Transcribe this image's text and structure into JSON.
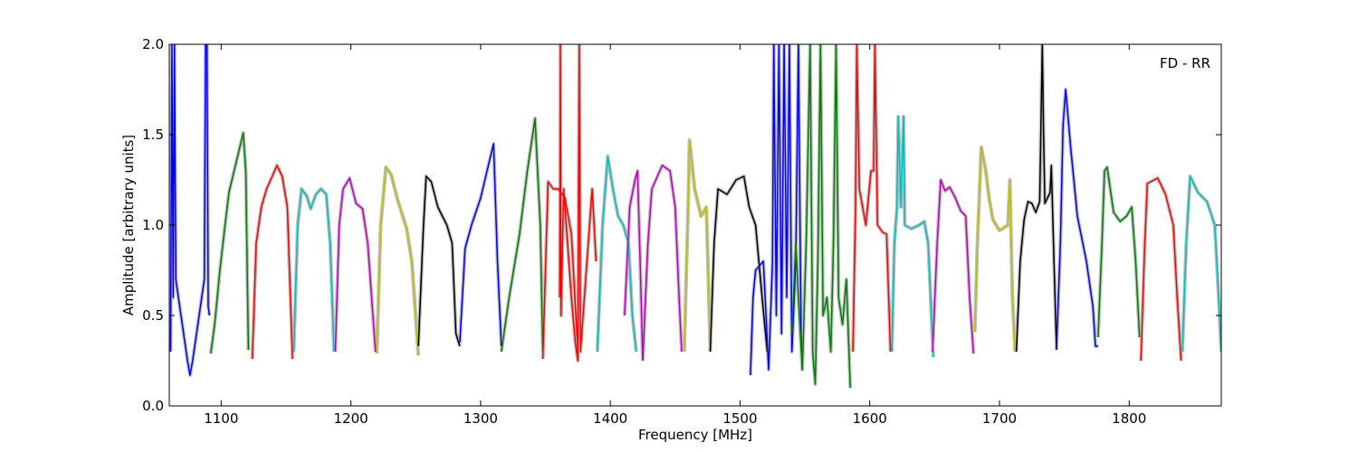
{
  "chart_data": {
    "type": "line",
    "title": "",
    "annotation": "FD - RR",
    "xlabel": "Frequency [MHz]",
    "ylabel": "Amplitude [arbitrary units]",
    "xlim": [
      1060,
      1871
    ],
    "ylim": [
      0,
      2
    ],
    "xticks": [
      1100,
      1200,
      1300,
      1400,
      1500,
      1600,
      1700,
      1800
    ],
    "yticks": [
      0.0,
      0.5,
      1.0,
      1.5,
      2.0
    ],
    "xtick_labels": [
      "1100",
      "1200",
      "1300",
      "1400",
      "1500",
      "1600",
      "1700",
      "1800"
    ],
    "ytick_labels": [
      "0.0",
      "0.5",
      "1.0",
      "1.5",
      "2.0"
    ],
    "grid": false,
    "envelope_color": "#bfbfbf",
    "series": [
      {
        "color": "#0000ff",
        "points": [
          [
            1061,
            0.3
          ],
          [
            1062,
            2.0
          ],
          [
            1063,
            0.6
          ],
          [
            1064,
            2.0
          ],
          [
            1065,
            0.7
          ],
          [
            1068,
            0.55
          ],
          [
            1071,
            0.4
          ],
          [
            1074,
            0.25
          ],
          [
            1076,
            0.17
          ],
          [
            1078,
            0.25
          ],
          [
            1081,
            0.4
          ],
          [
            1084,
            0.55
          ],
          [
            1087,
            0.7
          ],
          [
            1088,
            2.0
          ],
          [
            1089,
            2.0
          ],
          [
            1090,
            0.55
          ],
          [
            1091,
            0.5
          ]
        ]
      },
      {
        "color": "#008000",
        "points": [
          [
            1092,
            0.29
          ],
          [
            1095,
            0.45
          ],
          [
            1099,
            0.75
          ],
          [
            1103,
            1.0
          ],
          [
            1106,
            1.18
          ],
          [
            1110,
            1.3
          ],
          [
            1114,
            1.42
          ],
          [
            1117,
            1.51
          ],
          [
            1119,
            1.3
          ],
          [
            1121,
            0.31
          ]
        ]
      },
      {
        "color": "#ff0000",
        "points": [
          [
            1124,
            0.26
          ],
          [
            1127,
            0.9
          ],
          [
            1131,
            1.1
          ],
          [
            1135,
            1.2
          ],
          [
            1140,
            1.28
          ],
          [
            1143,
            1.33
          ],
          [
            1147,
            1.27
          ],
          [
            1151,
            1.1
          ],
          [
            1155,
            0.26
          ]
        ]
      },
      {
        "color": "#00bfbf",
        "points": [
          [
            1156,
            0.3
          ],
          [
            1159,
            1.0
          ],
          [
            1162,
            1.2
          ],
          [
            1166,
            1.16
          ],
          [
            1169,
            1.09
          ],
          [
            1173,
            1.17
          ],
          [
            1177,
            1.2
          ],
          [
            1181,
            1.17
          ],
          [
            1184,
            0.9
          ],
          [
            1187,
            0.3
          ]
        ]
      },
      {
        "color": "#bf00bf",
        "points": [
          [
            1188,
            0.3
          ],
          [
            1191,
            1.0
          ],
          [
            1194,
            1.2
          ],
          [
            1199,
            1.26
          ],
          [
            1204,
            1.12
          ],
          [
            1209,
            1.09
          ],
          [
            1213,
            0.9
          ],
          [
            1219,
            0.3
          ]
        ]
      },
      {
        "color": "#bfbf00",
        "points": [
          [
            1220,
            0.29
          ],
          [
            1223,
            1.0
          ],
          [
            1227,
            1.32
          ],
          [
            1231,
            1.28
          ],
          [
            1236,
            1.14
          ],
          [
            1243,
            0.98
          ],
          [
            1247,
            0.8
          ],
          [
            1252,
            0.28
          ]
        ]
      },
      {
        "color": "#000000",
        "points": [
          [
            1252,
            0.33
          ],
          [
            1256,
            1.0
          ],
          [
            1258,
            1.27
          ],
          [
            1262,
            1.24
          ],
          [
            1267,
            1.1
          ],
          [
            1274,
            1.0
          ],
          [
            1278,
            0.9
          ],
          [
            1281,
            0.4
          ],
          [
            1284,
            0.33
          ]
        ]
      },
      {
        "color": "#0000ff",
        "points": [
          [
            1284,
            0.35
          ],
          [
            1288,
            0.87
          ],
          [
            1293,
            1.0
          ],
          [
            1300,
            1.15
          ],
          [
            1305,
            1.3
          ],
          [
            1310,
            1.45
          ],
          [
            1313,
            0.8
          ],
          [
            1316,
            0.33
          ]
        ]
      },
      {
        "color": "#008000",
        "points": [
          [
            1316,
            0.3
          ],
          [
            1322,
            0.6
          ],
          [
            1330,
            0.95
          ],
          [
            1336,
            1.3
          ],
          [
            1342,
            1.59
          ],
          [
            1346,
            1.0
          ],
          [
            1348,
            0.3
          ]
        ]
      },
      {
        "color": "#ff0000",
        "points": [
          [
            1348,
            0.26
          ],
          [
            1352,
            1.24
          ],
          [
            1356,
            1.2
          ],
          [
            1360,
            1.2
          ],
          [
            1365,
            1.15
          ],
          [
            1370,
            0.95
          ],
          [
            1375,
            0.3
          ]
        ]
      },
      {
        "color": "#ff0000",
        "points": [
          [
            1361,
            0.6
          ],
          [
            1361.5,
            2.0
          ],
          [
            1362,
            0.5
          ],
          [
            1364,
            1.2
          ],
          [
            1367,
            0.9
          ],
          [
            1370,
            0.6
          ],
          [
            1373,
            0.35
          ],
          [
            1375,
            0.25
          ],
          [
            1376,
            2.0
          ],
          [
            1377,
            0.3
          ],
          [
            1380,
            0.6
          ],
          [
            1383,
            0.9
          ],
          [
            1386,
            1.2
          ],
          [
            1389,
            0.8
          ]
        ]
      },
      {
        "color": "#00bfbf",
        "points": [
          [
            1390,
            0.3
          ],
          [
            1394,
            1.0
          ],
          [
            1398,
            1.38
          ],
          [
            1402,
            1.2
          ],
          [
            1406,
            1.05
          ],
          [
            1410,
            1.0
          ],
          [
            1414,
            0.9
          ],
          [
            1417,
            0.5
          ],
          [
            1420,
            0.3
          ]
        ]
      },
      {
        "color": "#bf00bf",
        "points": [
          [
            1411,
            0.5
          ],
          [
            1415,
            1.1
          ],
          [
            1419,
            1.25
          ],
          [
            1421,
            1.3
          ],
          [
            1423,
            0.8
          ],
          [
            1425,
            0.25
          ]
        ]
      },
      {
        "color": "#bf00bf",
        "points": [
          [
            1425,
            0.25
          ],
          [
            1429,
            0.9
          ],
          [
            1432,
            1.2
          ],
          [
            1440,
            1.33
          ],
          [
            1446,
            1.3
          ],
          [
            1450,
            1.1
          ],
          [
            1453,
            0.6
          ],
          [
            1455,
            0.3
          ]
        ]
      },
      {
        "color": "#bfbf00",
        "points": [
          [
            1457,
            0.3
          ],
          [
            1460,
            1.1
          ],
          [
            1461,
            1.47
          ],
          [
            1465,
            1.2
          ],
          [
            1470,
            1.05
          ],
          [
            1474,
            1.1
          ],
          [
            1476,
            0.6
          ],
          [
            1477,
            0.3
          ]
        ]
      },
      {
        "color": "#000000",
        "points": [
          [
            1477,
            0.3
          ],
          [
            1480,
            0.9
          ],
          [
            1483,
            1.2
          ],
          [
            1490,
            1.17
          ],
          [
            1497,
            1.25
          ],
          [
            1503,
            1.27
          ],
          [
            1507,
            1.1
          ],
          [
            1512,
            1.0
          ],
          [
            1517,
            0.6
          ],
          [
            1521,
            0.3
          ]
        ]
      },
      {
        "color": "#0000ff",
        "points": [
          [
            1508,
            0.17
          ],
          [
            1510,
            0.6
          ],
          [
            1512,
            0.75
          ],
          [
            1518,
            0.8
          ],
          [
            1522,
            0.2
          ],
          [
            1525,
            0.8
          ],
          [
            1526,
            2.0
          ],
          [
            1528,
            0.5
          ],
          [
            1530,
            2.0
          ],
          [
            1532,
            0.4
          ],
          [
            1534,
            2.0
          ],
          [
            1536,
            0.6
          ],
          [
            1538,
            2.0
          ],
          [
            1540,
            0.3
          ],
          [
            1543,
            0.8
          ],
          [
            1545,
            2.0
          ],
          [
            1547,
            0.4
          ],
          [
            1548,
            0.2
          ]
        ]
      },
      {
        "color": "#008000",
        "points": [
          [
            1540,
            0.4
          ],
          [
            1543,
            0.9
          ],
          [
            1545,
            0.6
          ],
          [
            1548,
            0.2
          ],
          [
            1551,
            0.9
          ],
          [
            1554,
            2.0
          ],
          [
            1556,
            0.3
          ],
          [
            1558,
            0.12
          ],
          [
            1560,
            0.8
          ],
          [
            1562,
            2.0
          ],
          [
            1564,
            0.5
          ],
          [
            1567,
            0.6
          ],
          [
            1570,
            0.3
          ],
          [
            1572,
            0.9
          ],
          [
            1574,
            2.0
          ],
          [
            1576,
            0.6
          ],
          [
            1579,
            0.45
          ],
          [
            1582,
            0.7
          ],
          [
            1585,
            0.1
          ]
        ]
      },
      {
        "color": "#ff0000",
        "points": [
          [
            1587,
            0.3
          ],
          [
            1589,
            1.1
          ],
          [
            1590,
            2.0
          ],
          [
            1592,
            1.2
          ],
          [
            1597,
            1.0
          ],
          [
            1601,
            1.3
          ],
          [
            1603,
            1.3
          ],
          [
            1604,
            2.0
          ],
          [
            1606,
            1.0
          ],
          [
            1610,
            0.96
          ],
          [
            1613,
            0.95
          ],
          [
            1616,
            0.3
          ]
        ]
      },
      {
        "color": "#00bfbf",
        "points": [
          [
            1617,
            0.3
          ],
          [
            1619,
            0.9
          ],
          [
            1621,
            1.1
          ],
          [
            1622,
            1.6
          ],
          [
            1624,
            1.1
          ],
          [
            1626,
            1.6
          ],
          [
            1627,
            1.0
          ],
          [
            1632,
            0.98
          ],
          [
            1638,
            1.0
          ],
          [
            1642,
            1.02
          ],
          [
            1645,
            0.9
          ],
          [
            1649,
            0.27
          ]
        ]
      },
      {
        "color": "#bf00bf",
        "points": [
          [
            1648.4,
            0.3
          ],
          [
            1652,
            0.9
          ],
          [
            1654.7,
            1.25
          ],
          [
            1658,
            1.19
          ],
          [
            1661.6,
            1.21
          ],
          [
            1666,
            1.15
          ],
          [
            1670,
            1.08
          ],
          [
            1674,
            1.05
          ],
          [
            1677,
            0.6
          ],
          [
            1680,
            0.29
          ]
        ]
      },
      {
        "color": "#bfbf00",
        "points": [
          [
            1681,
            0.41
          ],
          [
            1683,
            0.9
          ],
          [
            1686,
            1.43
          ],
          [
            1689.5,
            1.3
          ],
          [
            1692,
            1.15
          ],
          [
            1695,
            1.03
          ],
          [
            1700,
            0.97
          ],
          [
            1706.5,
            1.0
          ],
          [
            1708,
            1.25
          ],
          [
            1710,
            0.6
          ],
          [
            1712,
            0.3
          ]
        ]
      },
      {
        "color": "#000000",
        "points": [
          [
            1713,
            0.3
          ],
          [
            1716,
            0.8
          ],
          [
            1719,
            1.03
          ],
          [
            1722,
            1.13
          ],
          [
            1725,
            1.12
          ],
          [
            1728,
            1.07
          ],
          [
            1731,
            1.13
          ],
          [
            1733,
            2.0
          ],
          [
            1734,
            1.5
          ],
          [
            1735,
            1.12
          ],
          [
            1739,
            1.18
          ],
          [
            1740,
            1.33
          ],
          [
            1742,
            0.8
          ],
          [
            1744,
            0.31
          ]
        ]
      },
      {
        "color": "#0000ff",
        "points": [
          [
            1744,
            0.32
          ],
          [
            1747,
            0.9
          ],
          [
            1749,
            1.55
          ],
          [
            1751,
            1.75
          ],
          [
            1755,
            1.42
          ],
          [
            1760,
            1.05
          ],
          [
            1767,
            0.8
          ],
          [
            1772,
            0.55
          ],
          [
            1774,
            0.33
          ],
          [
            1776,
            0.33
          ]
        ]
      },
      {
        "color": "#008000",
        "points": [
          [
            1776,
            0.38
          ],
          [
            1779,
            0.9
          ],
          [
            1781,
            1.3
          ],
          [
            1783,
            1.32
          ],
          [
            1788,
            1.07
          ],
          [
            1793,
            1.02
          ],
          [
            1798,
            1.05
          ],
          [
            1802,
            1.1
          ],
          [
            1805,
            0.8
          ],
          [
            1808,
            0.38
          ]
        ]
      },
      {
        "color": "#ff0000",
        "points": [
          [
            1809,
            0.25
          ],
          [
            1812,
            0.9
          ],
          [
            1814,
            1.23
          ],
          [
            1822,
            1.26
          ],
          [
            1828,
            1.17
          ],
          [
            1834,
            1.0
          ],
          [
            1837,
            0.6
          ],
          [
            1840,
            0.25
          ]
        ]
      },
      {
        "color": "#00bfbf",
        "points": [
          [
            1841,
            0.3
          ],
          [
            1844,
            0.9
          ],
          [
            1847,
            1.27
          ],
          [
            1853,
            1.18
          ],
          [
            1860,
            1.13
          ],
          [
            1866,
            1.0
          ],
          [
            1869,
            0.6
          ],
          [
            1871,
            0.3
          ]
        ]
      }
    ]
  }
}
